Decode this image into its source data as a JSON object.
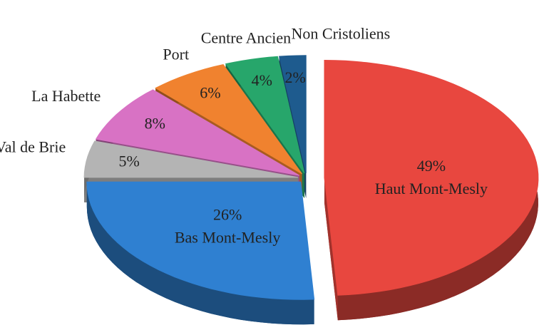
{
  "chart_data": {
    "type": "pie",
    "categories": [
      "Haut Mont-Mesly",
      "Bas Mont-Mesly",
      "Val de Brie",
      "La Habette",
      "Port",
      "Centre Ancien",
      "Non Cristoliens"
    ],
    "values": [
      49,
      26,
      5,
      8,
      6,
      4,
      2
    ],
    "value_labels": [
      "49%",
      "26%",
      "5%",
      "8%",
      "6%",
      "4%",
      "2%"
    ],
    "colors": [
      "#e8473f",
      "#2f80d1",
      "#b4b4b4",
      "#d872c4",
      "#f0822f",
      "#27a66b",
      "#1e5b8e"
    ]
  }
}
